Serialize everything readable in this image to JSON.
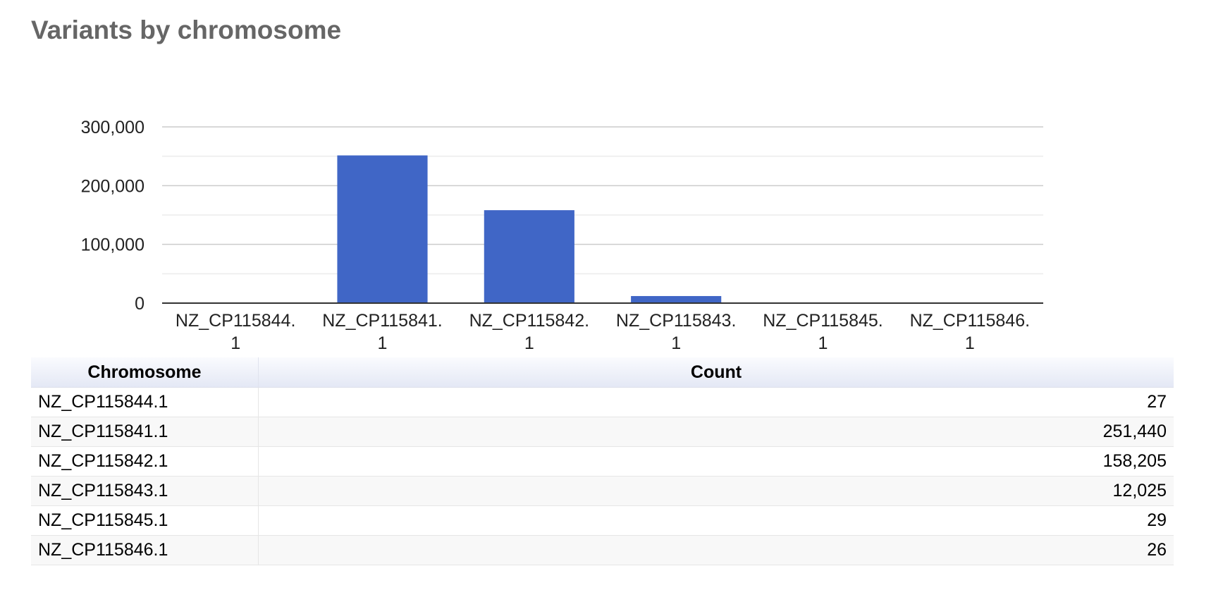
{
  "page": {
    "title": "Variants by chromosome"
  },
  "colors": {
    "bar": "#4066c6",
    "gridline": "#cccccc",
    "minor_gridline": "#ebebeb",
    "axis": "#333333",
    "title": "#666666"
  },
  "chart_data": {
    "type": "bar",
    "title": "",
    "xlabel": "",
    "ylabel": "",
    "categories": [
      "NZ_CP115844.1",
      "NZ_CP115841.1",
      "NZ_CP115842.1",
      "NZ_CP115843.1",
      "NZ_CP115845.1",
      "NZ_CP115846.1"
    ],
    "category_label_lines": [
      [
        "NZ_CP115844.",
        "1"
      ],
      [
        "NZ_CP115841.",
        "1"
      ],
      [
        "NZ_CP115842.",
        "1"
      ],
      [
        "NZ_CP115843.",
        "1"
      ],
      [
        "NZ_CP115845.",
        "1"
      ],
      [
        "NZ_CP115846.",
        "1"
      ]
    ],
    "values": [
      27,
      251440,
      158205,
      12025,
      29,
      26
    ],
    "ylim": [
      0,
      300000
    ],
    "yticks": [
      0,
      100000,
      200000,
      300000
    ],
    "ytick_labels": [
      "0",
      "100,000",
      "200,000",
      "300,000"
    ],
    "minor_gridlines": [
      50000,
      150000,
      250000
    ],
    "grid": true,
    "legend": "none"
  },
  "table": {
    "headers": [
      "Chromosome",
      "Count"
    ],
    "rows": [
      [
        "NZ_CP115844.1",
        "27"
      ],
      [
        "NZ_CP115841.1",
        "251,440"
      ],
      [
        "NZ_CP115842.1",
        "158,205"
      ],
      [
        "NZ_CP115843.1",
        "12,025"
      ],
      [
        "NZ_CP115845.1",
        "29"
      ],
      [
        "NZ_CP115846.1",
        "26"
      ]
    ]
  }
}
